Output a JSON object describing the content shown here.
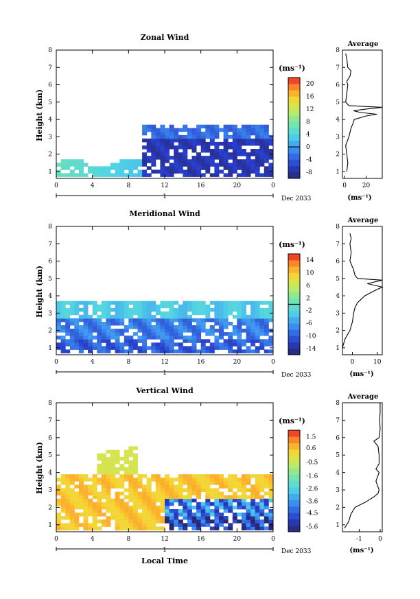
{
  "chart_data": [
    {
      "type": "heatmap",
      "title": "Zonal Wind",
      "ylabel": "Height (km)",
      "ylim": [
        0.6,
        8
      ],
      "x_ticks": [
        "0",
        "4",
        "8",
        "12",
        "16",
        "20",
        "0"
      ],
      "y_ticks": [
        "1",
        "2",
        "3",
        "4",
        "5",
        "6",
        "7",
        "8"
      ],
      "day_label": "1",
      "month_label": "Dec 2033",
      "colorbar_unit": "(ms⁻¹)",
      "colorbar_ticks": [
        "20",
        "16",
        "12",
        "8",
        "4",
        "0",
        "-4",
        "-8"
      ],
      "colorbar_range": [
        -10,
        22
      ],
      "zero_line": 0,
      "average": {
        "title": "Average",
        "xlabel": "(ms⁻¹)",
        "x_ticks": [
          "0",
          "20"
        ],
        "xlim": [
          -2,
          35
        ],
        "profile": [
          [
            1,
            2
          ],
          [
            1.5,
            3
          ],
          [
            2,
            2
          ],
          [
            2.5,
            1
          ],
          [
            3,
            4
          ],
          [
            3.5,
            6
          ],
          [
            3.8,
            8
          ],
          [
            4,
            9
          ],
          [
            4.2,
            20
          ],
          [
            4.3,
            30
          ],
          [
            4.4,
            15
          ],
          [
            4.5,
            8
          ],
          [
            4.6,
            20
          ],
          [
            4.7,
            35
          ],
          [
            4.8,
            4
          ],
          [
            5.0,
            1
          ],
          [
            5.5,
            2
          ],
          [
            6,
            3
          ],
          [
            6.2,
            2
          ],
          [
            6.5,
            5
          ],
          [
            6.8,
            6
          ],
          [
            7,
            3
          ],
          [
            7.5,
            2
          ],
          [
            7.8,
            1
          ]
        ]
      }
    },
    {
      "type": "heatmap",
      "title": "Meridional Wind",
      "ylabel": "Height (km)",
      "ylim": [
        0.6,
        8
      ],
      "x_ticks": [
        "0",
        "4",
        "8",
        "12",
        "16",
        "20",
        "0"
      ],
      "y_ticks": [
        "1",
        "2",
        "3",
        "4",
        "5",
        "6",
        "7",
        "8"
      ],
      "day_label": "1",
      "month_label": "Dec 2033",
      "colorbar_unit": "(ms⁻¹)",
      "colorbar_ticks": [
        "14",
        "10",
        "6",
        "2",
        "-2",
        "-6",
        "-10",
        "-14"
      ],
      "colorbar_range": [
        -16,
        16
      ],
      "zero_line": 0,
      "average": {
        "title": "Average",
        "xlabel": "(ms⁻¹)",
        "x_ticks": [
          "0",
          "10"
        ],
        "xlim": [
          -4,
          12
        ],
        "profile": [
          [
            1,
            -4
          ],
          [
            1.5,
            -3
          ],
          [
            2,
            -1
          ],
          [
            2.5,
            0
          ],
          [
            3,
            0.5
          ],
          [
            3.3,
            1
          ],
          [
            3.6,
            2
          ],
          [
            4,
            5
          ],
          [
            4.3,
            9
          ],
          [
            4.5,
            12
          ],
          [
            4.7,
            6
          ],
          [
            4.9,
            12
          ],
          [
            5.0,
            2
          ],
          [
            5.2,
            1
          ],
          [
            5.5,
            0.5
          ],
          [
            6,
            -1
          ],
          [
            6.5,
            -0.5
          ],
          [
            7,
            -1
          ],
          [
            7.3,
            -0.5
          ],
          [
            7.6,
            -1
          ]
        ]
      }
    },
    {
      "type": "heatmap",
      "title": "Vertical Wind",
      "xlabel": "Local Time",
      "ylabel": "Height (km)",
      "ylim": [
        0.6,
        8
      ],
      "x_ticks": [
        "0",
        "4",
        "8",
        "12",
        "16",
        "20",
        "0"
      ],
      "y_ticks": [
        "1",
        "2",
        "3",
        "4",
        "5",
        "6",
        "7",
        "8"
      ],
      "day_label": "1",
      "month_label": "Dec 2033",
      "colorbar_unit": "(ms⁻¹)",
      "colorbar_ticks": [
        "1.5",
        "0.6",
        "-0.5",
        "-1.6",
        "-2.6",
        "-3.6",
        "-4.5",
        "-5.6"
      ],
      "colorbar_range": [
        -6,
        2
      ],
      "average": {
        "title": "Average",
        "xlabel": "(ms⁻¹)",
        "x_ticks": [
          "-1",
          "0"
        ],
        "xlim": [
          -1.8,
          0.1
        ],
        "profile": [
          [
            0.8,
            -1.7
          ],
          [
            1.2,
            -1.5
          ],
          [
            1.6,
            -1.4
          ],
          [
            2,
            -1.2
          ],
          [
            2.3,
            -0.7
          ],
          [
            2.6,
            -0.3
          ],
          [
            2.8,
            -0.1
          ],
          [
            3,
            -0.05
          ],
          [
            3.5,
            -0.2
          ],
          [
            4,
            -0.05
          ],
          [
            4.2,
            -0.2
          ],
          [
            4.5,
            -0.05
          ],
          [
            5,
            -0.05
          ],
          [
            5.5,
            -0.1
          ],
          [
            5.8,
            -0.3
          ],
          [
            6,
            -0.05
          ],
          [
            6.5,
            0
          ],
          [
            7,
            -0.02
          ],
          [
            7.5,
            0
          ],
          [
            8,
            0
          ]
        ]
      }
    }
  ]
}
